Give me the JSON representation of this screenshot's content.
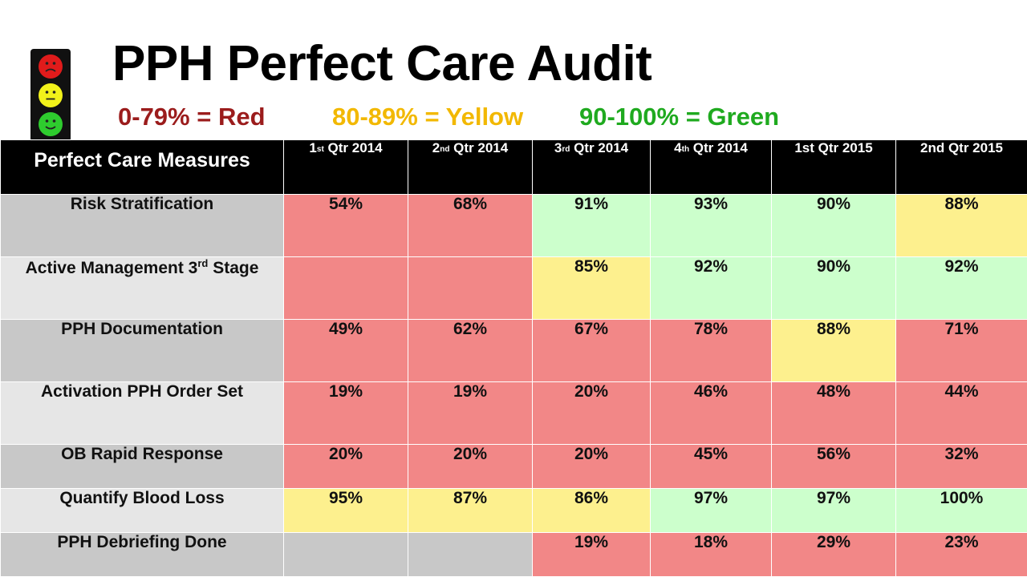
{
  "title": "PPH Perfect Care Audit",
  "legend": {
    "red": "0-79% = Red",
    "yellow": "80-89% = Yellow",
    "green": "90-100% = Green"
  },
  "colors": {
    "red_cell": "#f28787",
    "yellow_cell": "#fdf08e",
    "green_cell": "#ccffcc",
    "header_bg": "#000000"
  },
  "icons": [
    "frowning-face-icon",
    "neutral-face-icon",
    "smiling-face-icon"
  ],
  "table": {
    "header": {
      "measures": "Perfect Care Measures",
      "cols": [
        {
          "pre": "1",
          "sup": "st",
          "post": " Qtr 2014"
        },
        {
          "pre": "2",
          "sup": "nd",
          "post": " Qtr 2014"
        },
        {
          "pre": "3",
          "sup": "rd",
          "post": " Qtr 2014"
        },
        {
          "pre": "4",
          "sup": "th",
          "post": " Qtr 2014"
        },
        {
          "pre": "1st Qtr 2015",
          "sup": "",
          "post": ""
        },
        {
          "pre": "2nd Qtr 2015",
          "sup": "",
          "post": ""
        }
      ]
    },
    "rows": [
      {
        "label": "Risk Stratification",
        "values": [
          "54%",
          "68%",
          "91%",
          "93%",
          "90%",
          "88%"
        ]
      },
      {
        "label": "Active Management 3",
        "label_sup": "rd",
        "label_post": " Stage",
        "values": [
          "",
          "",
          "85%",
          "92%",
          "90%",
          "92%"
        ]
      },
      {
        "label": "PPH Documentation",
        "values": [
          "49%",
          "62%",
          "67%",
          "78%",
          "88%",
          "71%"
        ]
      },
      {
        "label": "Activation PPH Order Set",
        "values": [
          "19%",
          "19%",
          "20%",
          "46%",
          "48%",
          "44%"
        ]
      },
      {
        "label": "OB Rapid Response",
        "values": [
          "20%",
          "20%",
          "20%",
          "45%",
          "56%",
          "32%"
        ]
      },
      {
        "label": "Quantify Blood Loss",
        "values": [
          "95%",
          "87%",
          "86%",
          "97%",
          "97%",
          "100%"
        ]
      },
      {
        "label": "PPH Debriefing Done",
        "values": [
          "",
          "",
          "19%",
          "18%",
          "29%",
          "23%"
        ]
      }
    ]
  }
}
